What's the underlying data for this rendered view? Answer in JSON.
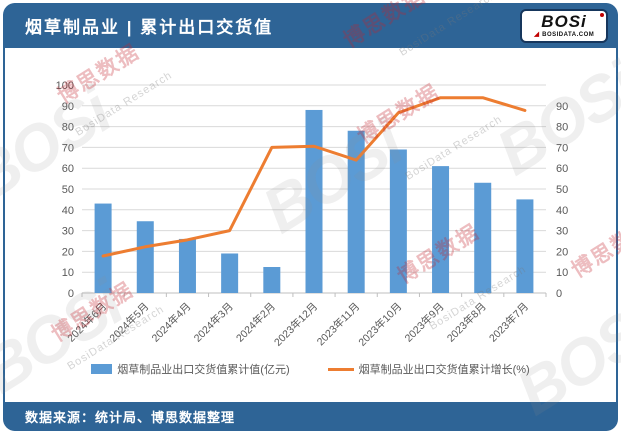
{
  "header": {
    "title": "烟草制品业 | 累计出口交货值",
    "logo": {
      "text_main": "BOSi",
      "domain": "BOSIDATA.COM",
      "triangle": "◢"
    }
  },
  "footer": {
    "source_text": "数据来源：统计局、博思数据整理"
  },
  "watermark": {
    "red_text": "博思数据",
    "gray_text": "BosiData Research",
    "ghost_text": "BOSi"
  },
  "colors": {
    "band_blue": "#2e6496",
    "bar_blue": "#5b9bd5",
    "line_orange": "#ed7d31",
    "grid_gray": "#d9d9d9",
    "axis_line_gray": "#bfbfbf",
    "axis_text_gray": "#595959",
    "logo_red": "#c00000"
  },
  "chart_data": {
    "type": "bar",
    "subtype": "bar-line-combo",
    "categories": [
      "2024年6月",
      "2024年5月",
      "2024年4月",
      "2024年3月",
      "2024年2月",
      "2023年12月",
      "2023年11月",
      "2023年10月",
      "2023年9月",
      "2023年8月",
      "2023年7月"
    ],
    "series": [
      {
        "name": "烟草制品业出口交货值累计值(亿元)",
        "type": "bar",
        "axis": "left",
        "color": "#5b9bd5",
        "values": [
          43,
          34.5,
          26,
          19,
          12.5,
          88,
          78,
          69,
          61,
          53,
          45
        ]
      },
      {
        "name": "烟草制品业出口交货值累计增长(%)",
        "type": "line",
        "axis": "right",
        "color": "#ed7d31",
        "values": [
          16,
          20,
          23,
          27,
          63,
          63.5,
          57.5,
          78,
          84.5,
          84.5,
          79
        ]
      }
    ],
    "left_axis": {
      "min": 0,
      "max": 100,
      "step": 10,
      "ticks": [
        0,
        10,
        20,
        30,
        40,
        50,
        60,
        70,
        80,
        90,
        100
      ]
    },
    "right_axis": {
      "min": 0,
      "max": 90,
      "step": 10,
      "ticks": [
        0,
        10,
        20,
        30,
        40,
        50,
        60,
        70,
        80,
        90
      ]
    },
    "grid": true,
    "legend_position": "bottom",
    "x_label_rotation": -45
  }
}
